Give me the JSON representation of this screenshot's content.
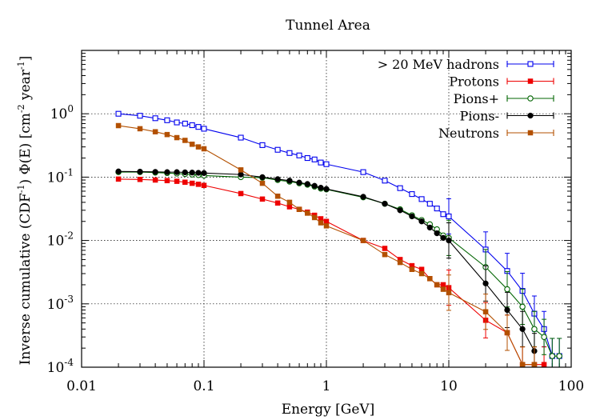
{
  "chart_data": {
    "type": "line",
    "title": "Tunnel Area",
    "xlabel": "Energy [GeV]",
    "ylabel": {
      "prefix": "Inverse cumulative (CDF",
      "prefix_sup": "-1",
      "middle": ") Φ(E) [cm",
      "middle_sup": "-2",
      "suffix_pre": " year",
      "suffix_sup": "-1",
      "suffix": "]"
    },
    "xscale": "log",
    "yscale": "log",
    "xlim": [
      0.01,
      100
    ],
    "ylim": [
      0.0001,
      10
    ],
    "x_ticks": [
      {
        "value": 0.01,
        "label": "0.01"
      },
      {
        "value": 0.1,
        "label": "0.1"
      },
      {
        "value": 1,
        "label": "1"
      },
      {
        "value": 10,
        "label": "10"
      },
      {
        "value": 100,
        "label": "100"
      }
    ],
    "y_ticks": [
      {
        "value": 0.0001,
        "base": "10",
        "exp": "-4"
      },
      {
        "value": 0.001,
        "base": "10",
        "exp": "-3"
      },
      {
        "value": 0.01,
        "base": "10",
        "exp": "-2"
      },
      {
        "value": 0.1,
        "base": "10",
        "exp": "-1"
      },
      {
        "value": 1,
        "base": "10",
        "exp": "0"
      }
    ],
    "grid": true,
    "legend_position": "top-right",
    "series": [
      {
        "name": "> 20 MeV hadrons",
        "color": "#0000ee",
        "marker": "open-square",
        "points": [
          [
            0.02,
            1.0
          ],
          [
            0.03,
            0.93
          ],
          [
            0.04,
            0.85
          ],
          [
            0.05,
            0.79
          ],
          [
            0.06,
            0.73
          ],
          [
            0.07,
            0.7
          ],
          [
            0.08,
            0.66
          ],
          [
            0.09,
            0.62
          ],
          [
            0.1,
            0.58
          ],
          [
            0.2,
            0.42
          ],
          [
            0.3,
            0.32
          ],
          [
            0.4,
            0.27
          ],
          [
            0.5,
            0.24
          ],
          [
            0.6,
            0.22
          ],
          [
            0.7,
            0.2
          ],
          [
            0.8,
            0.19
          ],
          [
            0.9,
            0.17
          ],
          [
            1.0,
            0.16
          ],
          [
            2.0,
            0.12
          ],
          [
            3.0,
            0.088
          ],
          [
            4.0,
            0.067
          ],
          [
            5.0,
            0.054
          ],
          [
            6.0,
            0.045
          ],
          [
            7.0,
            0.038
          ],
          [
            8.0,
            0.032
          ],
          [
            9.0,
            0.026
          ],
          [
            10.0,
            0.024
          ],
          [
            20.0,
            0.0072
          ],
          [
            30.0,
            0.0033
          ],
          [
            40.0,
            0.0016
          ],
          [
            50.0,
            0.0007
          ],
          [
            60.0,
            0.0004
          ],
          [
            70.0,
            0.00015
          ],
          [
            80.0,
            0.00015
          ]
        ]
      },
      {
        "name": "Protons",
        "color": "#ee0000",
        "marker": "filled-square",
        "points": [
          [
            0.02,
            0.093
          ],
          [
            0.03,
            0.092
          ],
          [
            0.04,
            0.09
          ],
          [
            0.05,
            0.088
          ],
          [
            0.06,
            0.086
          ],
          [
            0.07,
            0.083
          ],
          [
            0.08,
            0.08
          ],
          [
            0.09,
            0.077
          ],
          [
            0.1,
            0.074
          ],
          [
            0.2,
            0.055
          ],
          [
            0.3,
            0.045
          ],
          [
            0.4,
            0.039
          ],
          [
            0.5,
            0.034
          ],
          [
            0.6,
            0.031
          ],
          [
            0.7,
            0.028
          ],
          [
            0.8,
            0.025
          ],
          [
            0.9,
            0.022
          ],
          [
            1.0,
            0.02
          ],
          [
            2.0,
            0.01
          ],
          [
            3.0,
            0.0075
          ],
          [
            4.0,
            0.005
          ],
          [
            5.0,
            0.004
          ],
          [
            6.0,
            0.0035
          ],
          [
            7.0,
            0.0025
          ],
          [
            8.0,
            0.002
          ],
          [
            9.0,
            0.002
          ],
          [
            10.0,
            0.0018
          ],
          [
            20.0,
            0.00055
          ],
          [
            30.0,
            0.00035
          ],
          [
            40.0,
            0.00011
          ],
          [
            50.0,
            0.00011
          ],
          [
            60.0,
            0.00011
          ]
        ]
      },
      {
        "name": "Pions+",
        "color": "#006400",
        "marker": "open-circle",
        "points": [
          [
            0.02,
            0.12
          ],
          [
            0.03,
            0.12
          ],
          [
            0.04,
            0.118
          ],
          [
            0.05,
            0.116
          ],
          [
            0.06,
            0.114
          ],
          [
            0.07,
            0.112
          ],
          [
            0.08,
            0.11
          ],
          [
            0.09,
            0.108
          ],
          [
            0.1,
            0.106
          ],
          [
            0.2,
            0.1
          ],
          [
            0.3,
            0.098
          ],
          [
            0.4,
            0.09
          ],
          [
            0.5,
            0.085
          ],
          [
            0.6,
            0.08
          ],
          [
            0.7,
            0.076
          ],
          [
            0.8,
            0.071
          ],
          [
            0.9,
            0.066
          ],
          [
            1.0,
            0.064
          ],
          [
            2.0,
            0.048
          ],
          [
            3.0,
            0.038
          ],
          [
            4.0,
            0.031
          ],
          [
            5.0,
            0.025
          ],
          [
            6.0,
            0.021
          ],
          [
            7.0,
            0.018
          ],
          [
            8.0,
            0.015
          ],
          [
            9.0,
            0.012
          ],
          [
            10.0,
            0.011
          ],
          [
            20.0,
            0.0038
          ],
          [
            30.0,
            0.0017
          ],
          [
            40.0,
            0.0009
          ],
          [
            50.0,
            0.0004
          ],
          [
            60.0,
            0.0003
          ],
          [
            70.0,
            0.00015
          ],
          [
            80.0,
            0.00015
          ]
        ]
      },
      {
        "name": "Pions-",
        "color": "#000000",
        "marker": "filled-circle",
        "points": [
          [
            0.02,
            0.123
          ],
          [
            0.03,
            0.122
          ],
          [
            0.04,
            0.121
          ],
          [
            0.05,
            0.12
          ],
          [
            0.06,
            0.12
          ],
          [
            0.07,
            0.119
          ],
          [
            0.08,
            0.118
          ],
          [
            0.09,
            0.117
          ],
          [
            0.1,
            0.116
          ],
          [
            0.2,
            0.11
          ],
          [
            0.3,
            0.1
          ],
          [
            0.4,
            0.093
          ],
          [
            0.5,
            0.088
          ],
          [
            0.6,
            0.082
          ],
          [
            0.7,
            0.078
          ],
          [
            0.8,
            0.073
          ],
          [
            0.9,
            0.068
          ],
          [
            1.0,
            0.065
          ],
          [
            2.0,
            0.049
          ],
          [
            3.0,
            0.038
          ],
          [
            4.0,
            0.03
          ],
          [
            5.0,
            0.024
          ],
          [
            6.0,
            0.02
          ],
          [
            7.0,
            0.016
          ],
          [
            8.0,
            0.013
          ],
          [
            9.0,
            0.011
          ],
          [
            10.0,
            0.01
          ],
          [
            20.0,
            0.0021
          ],
          [
            30.0,
            0.0008
          ],
          [
            40.0,
            0.0004
          ],
          [
            50.0,
            0.00018
          ]
        ]
      },
      {
        "name": "Neutrons",
        "color": "#b35000",
        "marker": "filled-square",
        "points": [
          [
            0.02,
            0.65
          ],
          [
            0.03,
            0.58
          ],
          [
            0.04,
            0.52
          ],
          [
            0.05,
            0.47
          ],
          [
            0.06,
            0.42
          ],
          [
            0.07,
            0.38
          ],
          [
            0.08,
            0.33
          ],
          [
            0.09,
            0.3
          ],
          [
            0.1,
            0.28
          ],
          [
            0.2,
            0.13
          ],
          [
            0.3,
            0.08
          ],
          [
            0.4,
            0.05
          ],
          [
            0.5,
            0.04
          ],
          [
            0.6,
            0.031
          ],
          [
            0.7,
            0.027
          ],
          [
            0.8,
            0.023
          ],
          [
            0.9,
            0.019
          ],
          [
            1.0,
            0.017
          ],
          [
            2.0,
            0.01
          ],
          [
            3.0,
            0.006
          ],
          [
            4.0,
            0.0045
          ],
          [
            5.0,
            0.0035
          ],
          [
            6.0,
            0.003
          ],
          [
            7.0,
            0.0025
          ],
          [
            8.0,
            0.002
          ],
          [
            9.0,
            0.0017
          ],
          [
            10.0,
            0.0015
          ],
          [
            20.0,
            0.00075
          ],
          [
            30.0,
            0.00035
          ],
          [
            40.0,
            0.00011
          ],
          [
            50.0,
            0.00011
          ]
        ]
      }
    ]
  }
}
